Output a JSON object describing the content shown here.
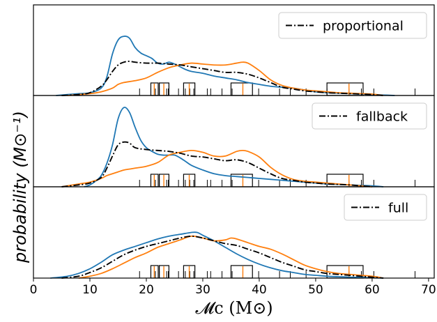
{
  "chart_data": {
    "type": "line",
    "xlabel": "𝓜c (M⊙)",
    "ylabel": "probability (M⊙⁻¹)",
    "xlim": [
      0,
      71
    ],
    "xticks": [
      0,
      10,
      20,
      30,
      40,
      50,
      60,
      70
    ],
    "xtick_labels": [
      "0",
      "10",
      "20",
      "30",
      "40",
      "50",
      "60",
      "70"
    ],
    "grid": false,
    "colors": {
      "blue": "#1f77b4",
      "orange": "#ff7f0e",
      "black": "#000000"
    },
    "rug_x": [
      18.8,
      20.8,
      21.6,
      22.3,
      23.6,
      23.9,
      25.7,
      26.6,
      26.9,
      27.7,
      28.4,
      30.8,
      31.4,
      33.4,
      35.2,
      37.1,
      39.9,
      43.6,
      45.5,
      48.3,
      52.0,
      55.9,
      58.1,
      60.3,
      67.6
    ],
    "orange_rug_x": [
      21.4,
      23.1,
      27.6,
      37.1,
      55.9
    ],
    "boxes": [
      [
        20.8,
        22.1
      ],
      [
        22.3,
        24.0
      ],
      [
        26.6,
        28.6
      ],
      [
        35.0,
        38.8
      ],
      [
        52.0,
        58.4
      ]
    ],
    "panels": [
      {
        "legend": "proportional",
        "ymax": 0.098,
        "series": [
          {
            "name": "",
            "color": "blue",
            "x": [
              4,
              6,
              8,
              10,
              12,
              13,
              14,
              15,
              16,
              17,
              18,
              19,
              20,
              21,
              22,
              23,
              24,
              25,
              26,
              27,
              28,
              30,
              32,
              34,
              36,
              38,
              40,
              42,
              44,
              46,
              48,
              50,
              52,
              54,
              56,
              58,
              60,
              62,
              64
            ],
            "y": [
              0.0,
              0.001,
              0.002,
              0.003,
              0.008,
              0.02,
              0.045,
              0.06,
              0.064,
              0.062,
              0.052,
              0.046,
              0.043,
              0.04,
              0.035,
              0.034,
              0.036,
              0.034,
              0.031,
              0.028,
              0.026,
              0.024,
              0.021,
              0.019,
              0.017,
              0.014,
              0.012,
              0.01,
              0.009,
              0.008,
              0.006,
              0.004,
              0.003,
              0.0025,
              0.002,
              0.0015,
              0.001,
              0.0005,
              0.0
            ]
          },
          {
            "name": "",
            "color": "orange",
            "x": [
              6,
              8,
              10,
              12,
              14,
              15,
              16,
              18,
              20,
              22,
              24,
              26,
              28,
              30,
              32,
              34,
              36,
              37,
              38,
              40,
              42,
              44,
              46,
              48,
              50,
              52,
              54,
              56,
              58,
              60,
              62
            ],
            "y": [
              0.0,
              0.001,
              0.002,
              0.004,
              0.008,
              0.012,
              0.014,
              0.016,
              0.019,
              0.025,
              0.03,
              0.033,
              0.035,
              0.034,
              0.033,
              0.033,
              0.035,
              0.036,
              0.035,
              0.027,
              0.017,
              0.011,
              0.008,
              0.006,
              0.005,
              0.004,
              0.003,
              0.0025,
              0.002,
              0.0015,
              0.0
            ]
          },
          {
            "name": "proportional",
            "color": "black",
            "dash": true,
            "x": [
              5,
              8,
              10,
              12,
              13,
              14,
              15,
              16,
              17,
              18,
              20,
              22,
              24,
              26,
              28,
              30,
              32,
              34,
              36,
              38,
              40,
              42,
              44,
              46,
              48,
              50,
              52,
              54,
              56,
              58,
              60,
              62
            ],
            "y": [
              0.0,
              0.001,
              0.003,
              0.01,
              0.017,
              0.026,
              0.033,
              0.036,
              0.037,
              0.036,
              0.035,
              0.035,
              0.034,
              0.033,
              0.031,
              0.029,
              0.027,
              0.025,
              0.025,
              0.023,
              0.019,
              0.014,
              0.009,
              0.007,
              0.005,
              0.004,
              0.003,
              0.0025,
              0.002,
              0.0015,
              0.001,
              0.0
            ]
          }
        ]
      },
      {
        "legend": "fallback",
        "ymax": 0.098,
        "series": [
          {
            "name": "",
            "color": "blue",
            "x": [
              9,
              10,
              11,
              12,
              13,
              14,
              15,
              16,
              17,
              18,
              19,
              20,
              21,
              22,
              23,
              24,
              25,
              26,
              27,
              28,
              30,
              32,
              34,
              36,
              38,
              40,
              42,
              44,
              46,
              48,
              50,
              52,
              54,
              56,
              58,
              60,
              62
            ],
            "y": [
              0.0,
              0.002,
              0.006,
              0.012,
              0.025,
              0.045,
              0.073,
              0.085,
              0.08,
              0.064,
              0.05,
              0.042,
              0.038,
              0.035,
              0.034,
              0.034,
              0.034,
              0.031,
              0.027,
              0.023,
              0.018,
              0.014,
              0.012,
              0.011,
              0.01,
              0.009,
              0.008,
              0.007,
              0.006,
              0.005,
              0.004,
              0.003,
              0.0025,
              0.002,
              0.0015,
              0.001,
              0.0
            ]
          },
          {
            "name": "",
            "color": "orange",
            "x": [
              5,
              8,
              10,
              12,
              13,
              14,
              15,
              16,
              17,
              18,
              20,
              22,
              24,
              26,
              28,
              30,
              32,
              34,
              36,
              37,
              38,
              40,
              42,
              44,
              46,
              48,
              50,
              52,
              54,
              56,
              58,
              60
            ],
            "y": [
              0.0,
              0.003,
              0.005,
              0.009,
              0.012,
              0.014,
              0.016,
              0.018,
              0.019,
              0.02,
              0.022,
              0.026,
              0.034,
              0.037,
              0.039,
              0.037,
              0.033,
              0.033,
              0.038,
              0.039,
              0.038,
              0.032,
              0.021,
              0.013,
              0.008,
              0.006,
              0.005,
              0.004,
              0.003,
              0.002,
              0.001,
              0.0
            ]
          },
          {
            "name": "fallback",
            "color": "black",
            "dash": true,
            "x": [
              5,
              8,
              10,
              12,
              13,
              14,
              15,
              16,
              17,
              18,
              20,
              22,
              24,
              26,
              28,
              30,
              32,
              34,
              36,
              38,
              40,
              42,
              44,
              46,
              48,
              50,
              52,
              54,
              56,
              58,
              60
            ],
            "y": [
              0.0,
              0.002,
              0.004,
              0.01,
              0.02,
              0.033,
              0.045,
              0.048,
              0.047,
              0.042,
              0.04,
              0.039,
              0.038,
              0.036,
              0.033,
              0.032,
              0.03,
              0.028,
              0.029,
              0.026,
              0.02,
              0.014,
              0.009,
              0.007,
              0.005,
              0.004,
              0.003,
              0.0025,
              0.002,
              0.001,
              0.0
            ]
          }
        ]
      },
      {
        "legend": "full",
        "ymax": 0.098,
        "series": [
          {
            "name": "",
            "color": "blue",
            "x": [
              3,
              6,
              8,
              10,
              12,
              14,
              16,
              18,
              20,
              22,
              24,
              26,
              28,
              29,
              30,
              32,
              34,
              36,
              38,
              40,
              42,
              44,
              46,
              48,
              50,
              52,
              54,
              56,
              58,
              60,
              62
            ],
            "y": [
              0.0,
              0.002,
              0.005,
              0.01,
              0.017,
              0.025,
              0.03,
              0.034,
              0.038,
              0.042,
              0.045,
              0.047,
              0.049,
              0.049,
              0.046,
              0.04,
              0.033,
              0.026,
              0.02,
              0.015,
              0.011,
              0.008,
              0.006,
              0.004,
              0.003,
              0.002,
              0.0015,
              0.001,
              0.0007,
              0.0003,
              0.0
            ]
          },
          {
            "name": "",
            "color": "orange",
            "x": [
              8,
              10,
              12,
              14,
              16,
              18,
              20,
              22,
              24,
              26,
              28,
              30,
              32,
              34,
              35,
              36,
              38,
              40,
              42,
              44,
              46,
              48,
              50,
              52,
              54,
              56,
              58,
              60,
              62
            ],
            "y": [
              0.0,
              0.002,
              0.005,
              0.01,
              0.016,
              0.022,
              0.027,
              0.033,
              0.037,
              0.041,
              0.045,
              0.043,
              0.04,
              0.041,
              0.043,
              0.042,
              0.038,
              0.034,
              0.031,
              0.026,
              0.02,
              0.014,
              0.01,
              0.007,
              0.005,
              0.004,
              0.003,
              0.002,
              0.0
            ]
          },
          {
            "name": "full",
            "color": "black",
            "dash": true,
            "x": [
              5,
              8,
              10,
              12,
              14,
              16,
              18,
              20,
              22,
              24,
              26,
              28,
              30,
              32,
              34,
              36,
              38,
              40,
              42,
              44,
              46,
              48,
              50,
              52,
              54,
              56,
              58,
              60,
              62
            ],
            "y": [
              0.0,
              0.002,
              0.006,
              0.011,
              0.018,
              0.025,
              0.03,
              0.034,
              0.037,
              0.04,
              0.043,
              0.045,
              0.043,
              0.04,
              0.037,
              0.035,
              0.031,
              0.027,
              0.022,
              0.017,
              0.013,
              0.009,
              0.007,
              0.005,
              0.004,
              0.003,
              0.002,
              0.001,
              0.0
            ]
          }
        ]
      }
    ]
  }
}
